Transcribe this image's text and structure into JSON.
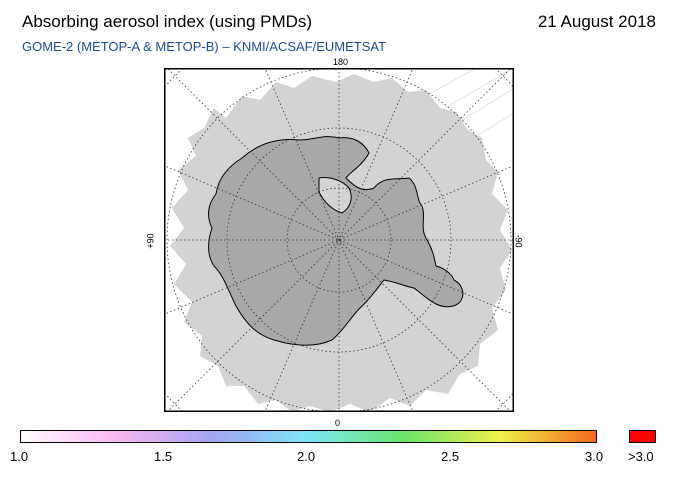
{
  "header": {
    "title": "Absorbing aerosol index (using PMDs)",
    "date": "21 August 2018",
    "subtitle": "GOME-2 (METOP-A & METOP-B)  –  KNMI/ACSAF/EUMETSAT"
  },
  "map": {
    "projection": "south polar stereographic",
    "meridian_labels": {
      "top": "180",
      "bottom": "0",
      "left": "+90",
      "right": "-90"
    },
    "colors": {
      "no_data": "#d3d3d3",
      "continent": "#a8a8a8",
      "graticule": "#333333",
      "outside": "#ffffff"
    }
  },
  "colorbar": {
    "ticks": [
      "1.0",
      "1.5",
      "2.0",
      "2.5",
      "3.0"
    ],
    "overflow_label": ">3.0",
    "overflow_color": "#ff0000",
    "gradient_stops": [
      "#ffffff",
      "#f7b6f0",
      "#a4a4f2",
      "#7de6f5",
      "#6be56b",
      "#f0f04a",
      "#f26a1f"
    ]
  }
}
